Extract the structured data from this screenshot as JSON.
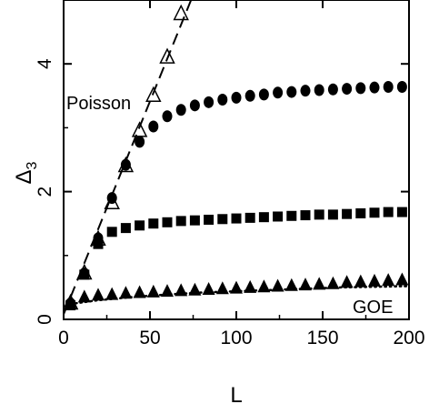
{
  "chart_data": {
    "type": "scatter",
    "xlabel": "L",
    "ylabel": "Δ3",
    "xlim": [
      0,
      200
    ],
    "ylim": [
      0,
      5
    ],
    "xticks": [
      "0",
      "50",
      "100",
      "150",
      "200"
    ],
    "yticks": [
      "0",
      "2",
      "4"
    ],
    "xtick_values": [
      0,
      50,
      100,
      150,
      200
    ],
    "ytick_values": [
      0,
      2,
      4
    ],
    "grid": false,
    "annotations": [
      "Poisson",
      "GOE"
    ],
    "series": [
      {
        "marker": "circle-filled",
        "x": [
          4,
          12,
          20,
          28,
          36,
          44,
          52,
          60,
          68,
          76,
          84,
          92,
          100,
          108,
          116,
          124,
          132,
          140,
          148,
          156,
          164,
          172,
          180,
          188,
          196
        ],
        "y": [
          0.25,
          0.72,
          1.27,
          1.9,
          2.42,
          2.78,
          3.02,
          3.18,
          3.28,
          3.35,
          3.4,
          3.44,
          3.47,
          3.5,
          3.52,
          3.55,
          3.56,
          3.58,
          3.59,
          3.6,
          3.61,
          3.62,
          3.63,
          3.64,
          3.64
        ]
      },
      {
        "marker": "square-filled",
        "x": [
          4,
          12,
          20,
          28,
          36,
          44,
          52,
          60,
          68,
          76,
          84,
          92,
          100,
          108,
          116,
          124,
          132,
          140,
          148,
          156,
          164,
          172,
          180,
          188,
          196
        ],
        "y": [
          0.22,
          0.7,
          1.18,
          1.37,
          1.43,
          1.47,
          1.5,
          1.52,
          1.54,
          1.55,
          1.56,
          1.57,
          1.58,
          1.59,
          1.6,
          1.61,
          1.62,
          1.63,
          1.64,
          1.64,
          1.65,
          1.66,
          1.67,
          1.68,
          1.68
        ]
      },
      {
        "marker": "triangle-filled",
        "x": [
          4,
          12,
          20,
          28,
          36,
          44,
          52,
          60,
          68,
          76,
          84,
          92,
          100,
          108,
          116,
          124,
          132,
          140,
          148,
          156,
          164,
          172,
          180,
          188,
          196
        ],
        "y": [
          0.24,
          0.35,
          0.38,
          0.39,
          0.41,
          0.42,
          0.43,
          0.44,
          0.45,
          0.46,
          0.47,
          0.48,
          0.49,
          0.5,
          0.51,
          0.52,
          0.53,
          0.54,
          0.55,
          0.56,
          0.58,
          0.59,
          0.6,
          0.61,
          0.62
        ]
      },
      {
        "marker": "triangle-open",
        "x": [
          4,
          12,
          20,
          28,
          36,
          44,
          52,
          60,
          68
        ],
        "y": [
          0.25,
          0.72,
          1.25,
          1.82,
          2.4,
          2.95,
          3.5,
          4.1,
          4.78
        ]
      },
      {
        "line": "dashed",
        "label": "Poisson",
        "x": [
          0,
          75
        ],
        "y": [
          0.08,
          5.08
        ]
      },
      {
        "line": "dotted",
        "label": "GOE",
        "x": [
          4,
          20,
          40,
          60,
          80,
          100,
          120,
          140,
          160,
          180,
          200
        ],
        "y": [
          0.24,
          0.3,
          0.35,
          0.39,
          0.42,
          0.44,
          0.46,
          0.48,
          0.5,
          0.51,
          0.52
        ]
      }
    ]
  }
}
